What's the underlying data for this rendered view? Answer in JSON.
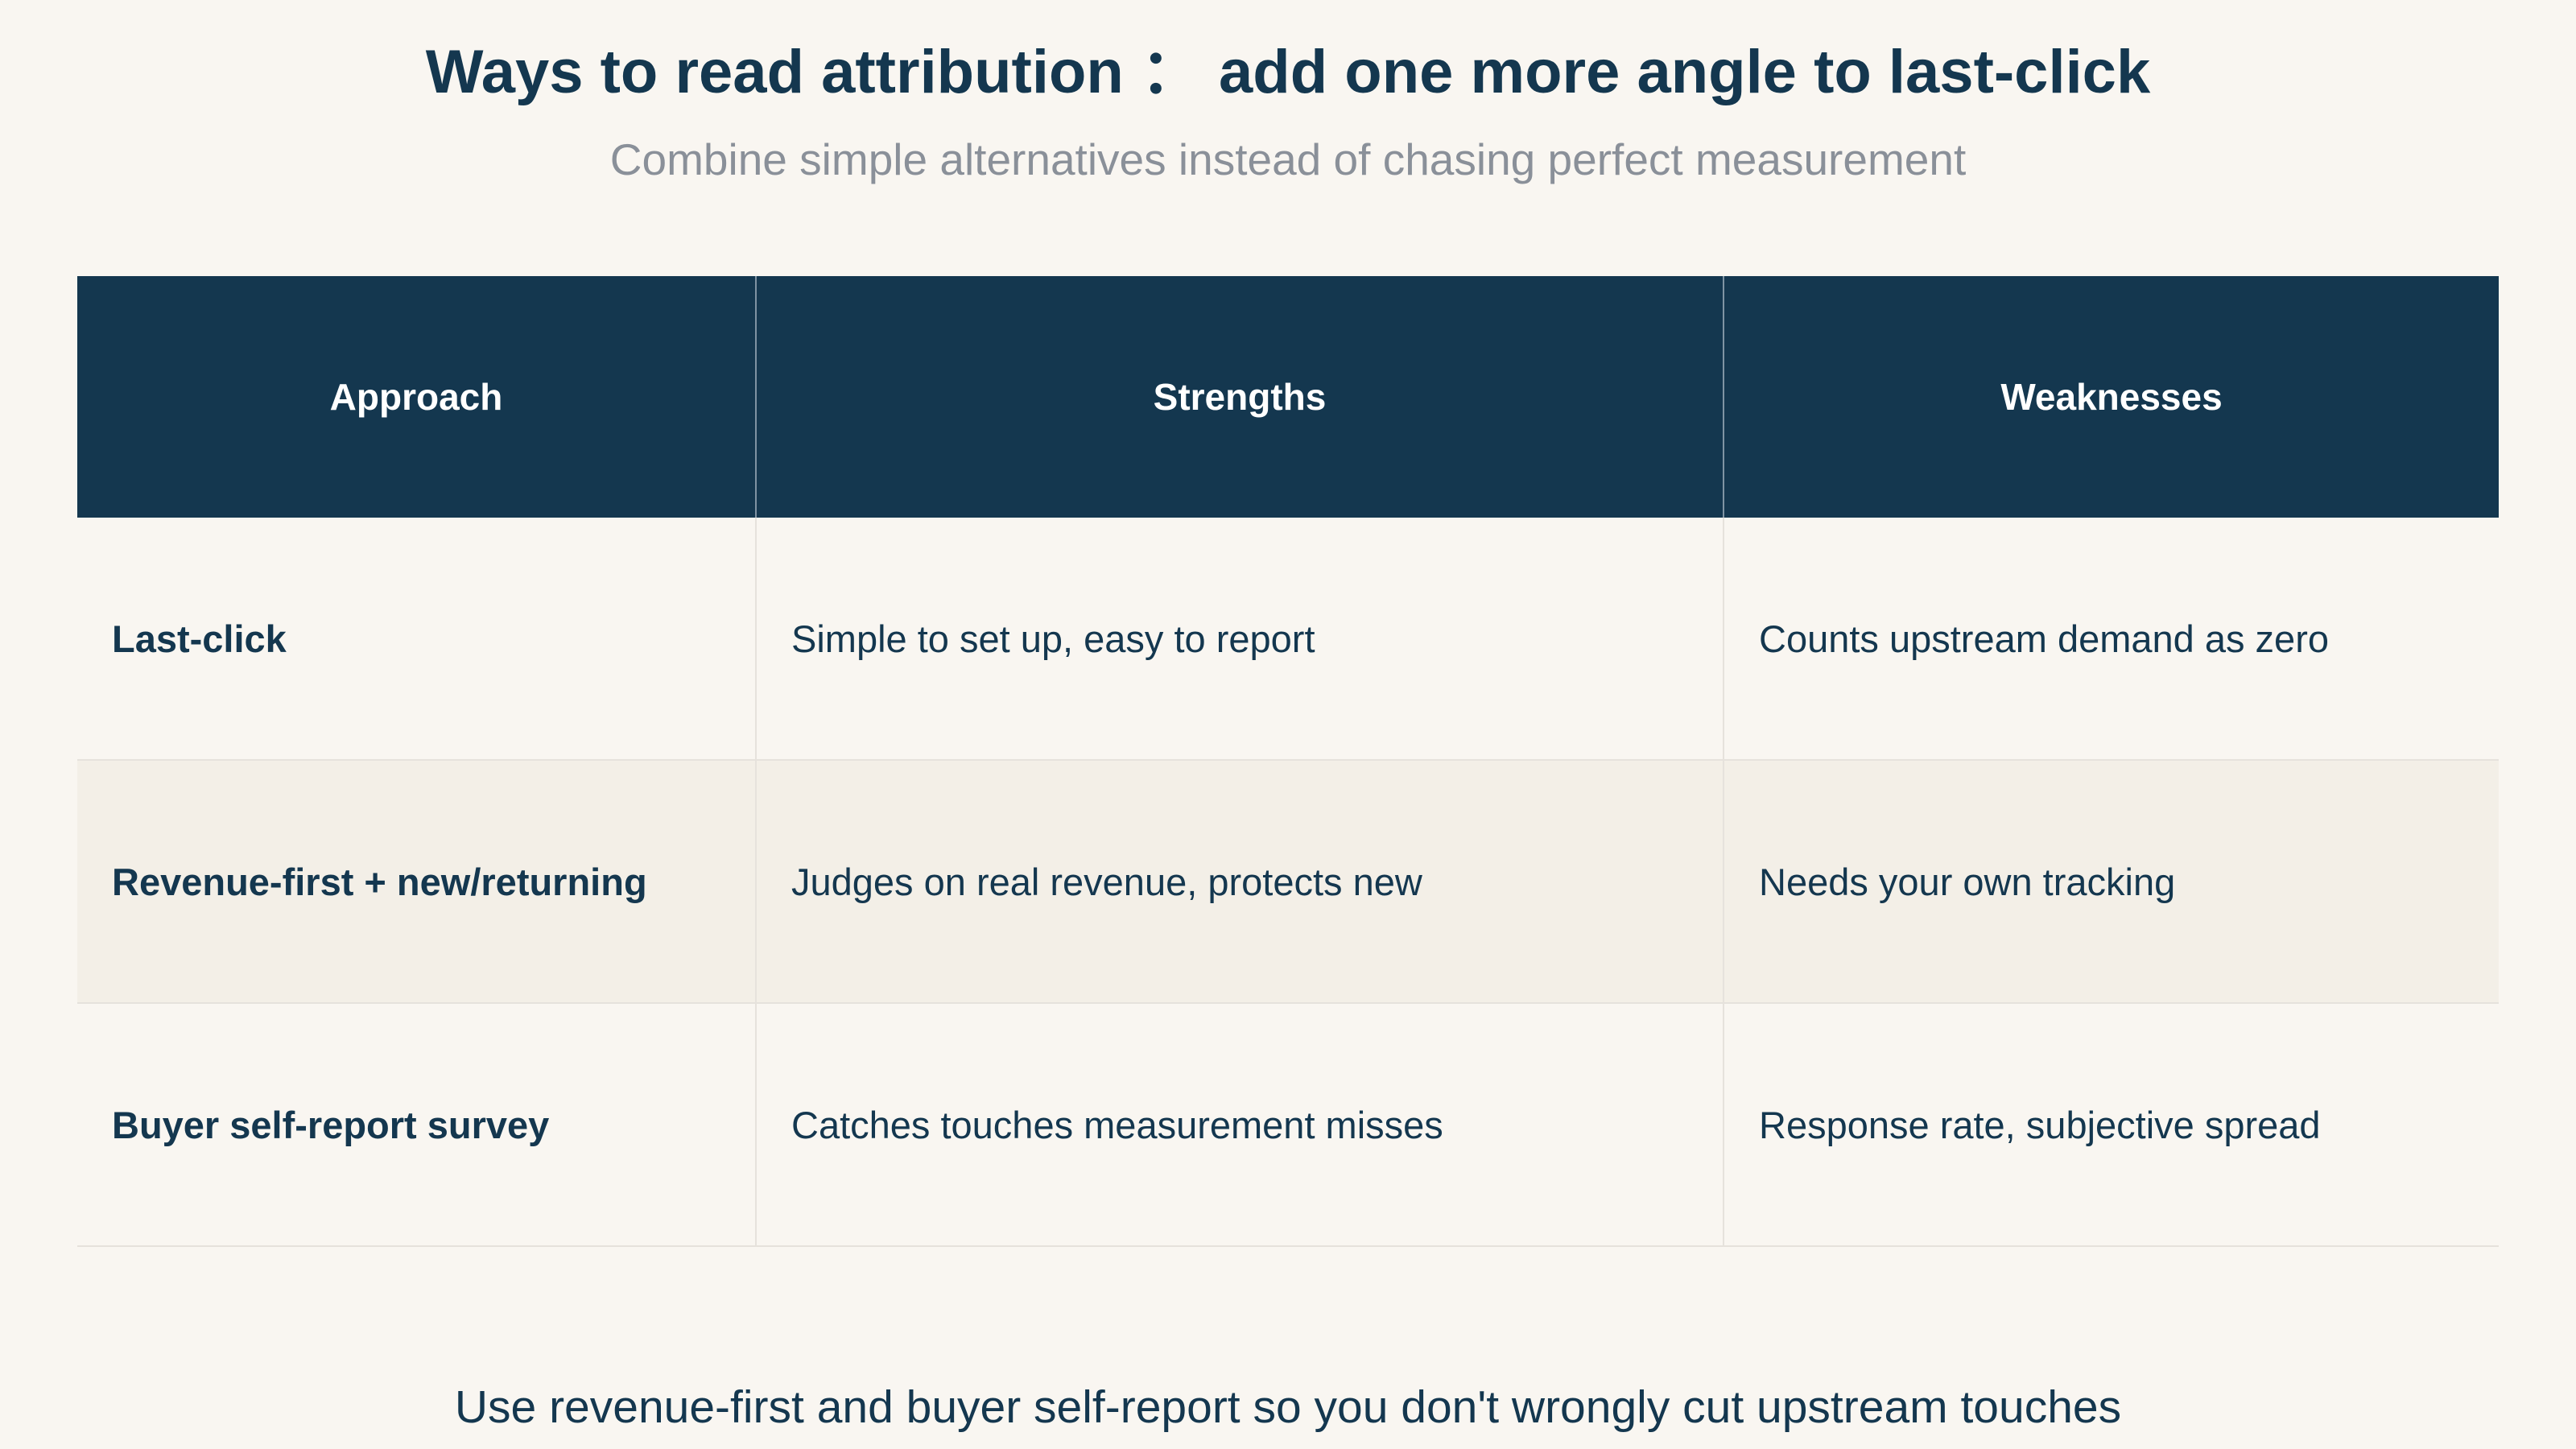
{
  "header": {
    "title": "Ways to read attribution ： add one more angle to last-click",
    "subtitle": "Combine simple alternatives instead of chasing perfect measurement"
  },
  "table": {
    "columns": [
      "Approach",
      "Strengths",
      "Weaknesses"
    ],
    "rows": [
      [
        "Last-click",
        "Simple to set up, easy to report",
        "Counts upstream demand as zero"
      ],
      [
        "Revenue-first + new/returning",
        "Judges on real revenue, protects new",
        "Needs your own tracking"
      ],
      [
        "Buyer self-report survey",
        "Catches touches measurement misses",
        "Response rate, subjective spread"
      ]
    ]
  },
  "footer": {
    "note": "Use revenue-first and buyer self-report so you don't wrongly cut upstream touches"
  }
}
